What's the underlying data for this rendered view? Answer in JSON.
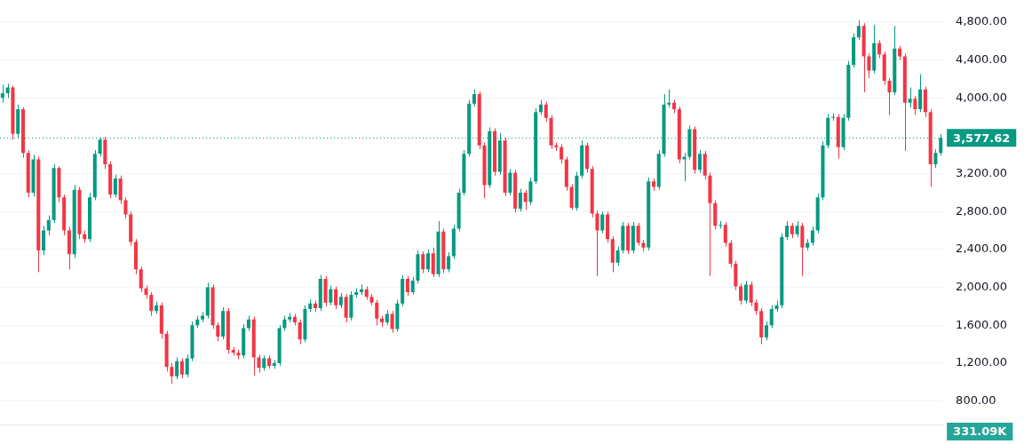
{
  "chart_data": {
    "type": "candlestick",
    "categories": [
      null,
      null,
      null,
      null,
      null,
      null,
      null,
      null,
      null,
      null,
      null,
      null,
      null,
      null,
      null,
      null,
      null,
      null,
      null,
      null,
      null,
      null,
      null,
      null,
      null,
      null,
      null,
      null,
      null,
      null,
      null,
      null,
      null,
      null,
      null,
      null,
      null,
      null,
      null,
      null,
      null,
      null,
      null,
      null,
      null,
      null,
      null,
      null,
      null,
      null,
      null,
      null,
      null,
      null,
      null,
      null,
      null,
      null,
      null,
      null,
      null,
      null,
      null,
      null,
      null,
      null,
      null,
      null,
      null,
      null,
      null,
      null,
      null,
      null,
      null,
      null,
      null,
      null,
      null,
      null,
      null,
      null,
      null,
      null,
      null,
      null,
      null,
      null,
      null,
      null,
      null,
      null,
      null,
      null,
      null,
      null,
      null,
      null,
      null,
      null,
      null,
      null,
      null,
      null,
      null,
      null,
      null,
      null,
      null,
      null,
      null,
      null,
      null,
      null,
      null,
      null,
      null,
      null,
      null,
      null,
      null,
      null,
      null,
      null,
      null,
      null,
      null,
      null,
      null,
      null,
      null,
      null,
      null,
      null,
      null,
      null,
      null,
      null,
      null,
      null,
      null,
      null,
      null,
      null,
      null,
      null,
      null,
      null,
      null,
      null,
      null,
      null,
      null,
      null,
      null,
      null,
      null,
      null,
      null,
      null,
      null,
      null,
      null,
      null,
      null,
      null,
      null,
      null,
      null,
      null,
      null,
      null,
      null,
      null,
      null,
      null,
      null,
      null,
      null,
      null,
      null,
      null,
      null,
      null
    ],
    "ohlc": [
      [
        4000,
        4140,
        3950,
        4050
      ],
      [
        4050,
        4150,
        4000,
        4110
      ],
      [
        4110,
        4130,
        3560,
        3620
      ],
      [
        3620,
        3930,
        3580,
        3880
      ],
      [
        3880,
        3900,
        3370,
        3420
      ],
      [
        3420,
        3450,
        2950,
        3000
      ],
      [
        3000,
        3400,
        2960,
        3350
      ],
      [
        3350,
        3380,
        2160,
        2390
      ],
      [
        2390,
        2650,
        2340,
        2600
      ],
      [
        2600,
        2760,
        2550,
        2710
      ],
      [
        2710,
        3300,
        2680,
        3260
      ],
      [
        3260,
        3280,
        2900,
        2950
      ],
      [
        2950,
        2980,
        2550,
        2600
      ],
      [
        2600,
        2640,
        2190,
        2350
      ],
      [
        2350,
        3080,
        2310,
        3030
      ],
      [
        3030,
        3060,
        2510,
        2560
      ],
      [
        2560,
        2600,
        2470,
        2510
      ],
      [
        2510,
        3000,
        2480,
        2950
      ],
      [
        2950,
        3450,
        2920,
        3410
      ],
      [
        3410,
        3580,
        3380,
        3560
      ],
      [
        3560,
        3590,
        3250,
        3300
      ],
      [
        3300,
        3330,
        2940,
        2980
      ],
      [
        2980,
        3190,
        2950,
        3150
      ],
      [
        3150,
        3180,
        2880,
        2920
      ],
      [
        2920,
        2950,
        2730,
        2770
      ],
      [
        2770,
        2800,
        2440,
        2480
      ],
      [
        2480,
        2510,
        2140,
        2190
      ],
      [
        2190,
        2220,
        1950,
        1990
      ],
      [
        1990,
        2020,
        1880,
        1920
      ],
      [
        1920,
        1950,
        1700,
        1750
      ],
      [
        1750,
        1850,
        1720,
        1810
      ],
      [
        1810,
        1840,
        1460,
        1510
      ],
      [
        1510,
        1540,
        1110,
        1160
      ],
      [
        1160,
        1200,
        980,
        1060
      ],
      [
        1060,
        1260,
        1030,
        1220
      ],
      [
        1220,
        1250,
        1040,
        1080
      ],
      [
        1080,
        1290,
        1050,
        1250
      ],
      [
        1250,
        1640,
        1220,
        1600
      ],
      [
        1600,
        1700,
        1570,
        1660
      ],
      [
        1660,
        1740,
        1630,
        1700
      ],
      [
        1700,
        2050,
        1670,
        2000
      ],
      [
        2000,
        2030,
        1560,
        1600
      ],
      [
        1600,
        1630,
        1430,
        1480
      ],
      [
        1480,
        1790,
        1450,
        1750
      ],
      [
        1750,
        1780,
        1300,
        1340
      ],
      [
        1340,
        1370,
        1280,
        1310
      ],
      [
        1310,
        1340,
        1240,
        1280
      ],
      [
        1280,
        1610,
        1250,
        1570
      ],
      [
        1570,
        1700,
        1540,
        1660
      ],
      [
        1660,
        1690,
        1070,
        1260
      ],
      [
        1260,
        1290,
        1100,
        1150
      ],
      [
        1150,
        1280,
        1120,
        1250
      ],
      [
        1250,
        1280,
        1140,
        1170
      ],
      [
        1170,
        1230,
        1140,
        1200
      ],
      [
        1200,
        1600,
        1170,
        1570
      ],
      [
        1570,
        1700,
        1540,
        1660
      ],
      [
        1660,
        1730,
        1630,
        1690
      ],
      [
        1690,
        1720,
        1600,
        1630
      ],
      [
        1630,
        1660,
        1400,
        1450
      ],
      [
        1450,
        1810,
        1420,
        1770
      ],
      [
        1770,
        1870,
        1740,
        1830
      ],
      [
        1830,
        1860,
        1740,
        1780
      ],
      [
        1780,
        2130,
        1750,
        2090
      ],
      [
        2090,
        2120,
        1800,
        1840
      ],
      [
        1840,
        2020,
        1810,
        1980
      ],
      [
        1980,
        2010,
        1770,
        1810
      ],
      [
        1810,
        1940,
        1780,
        1900
      ],
      [
        1900,
        1930,
        1630,
        1680
      ],
      [
        1680,
        1960,
        1650,
        1920
      ],
      [
        1920,
        1990,
        1890,
        1950
      ],
      [
        1950,
        2030,
        1920,
        1980
      ],
      [
        1980,
        2010,
        1870,
        1900
      ],
      [
        1900,
        1930,
        1810,
        1840
      ],
      [
        1840,
        1870,
        1600,
        1670
      ],
      [
        1670,
        1700,
        1580,
        1630
      ],
      [
        1630,
        1760,
        1600,
        1720
      ],
      [
        1720,
        1750,
        1520,
        1560
      ],
      [
        1560,
        1870,
        1530,
        1830
      ],
      [
        1830,
        2130,
        1800,
        2090
      ],
      [
        2090,
        2120,
        1910,
        1950
      ],
      [
        1950,
        2110,
        1920,
        2070
      ],
      [
        2070,
        2390,
        2040,
        2350
      ],
      [
        2350,
        2380,
        2150,
        2190
      ],
      [
        2190,
        2400,
        2160,
        2360
      ],
      [
        2360,
        2420,
        2110,
        2140
      ],
      [
        2140,
        2700,
        2110,
        2590
      ],
      [
        2590,
        2620,
        2150,
        2190
      ],
      [
        2190,
        2370,
        2160,
        2330
      ],
      [
        2330,
        2660,
        2300,
        2620
      ],
      [
        2620,
        3040,
        2590,
        3000
      ],
      [
        3000,
        3450,
        2970,
        3410
      ],
      [
        3410,
        3980,
        3380,
        3940
      ],
      [
        3940,
        4090,
        3910,
        4040
      ],
      [
        4040,
        4070,
        3460,
        3500
      ],
      [
        3500,
        3530,
        2940,
        3080
      ],
      [
        3080,
        3690,
        3050,
        3650
      ],
      [
        3650,
        3680,
        3180,
        3220
      ],
      [
        3220,
        3630,
        3190,
        3550
      ],
      [
        3550,
        3580,
        2960,
        3000
      ],
      [
        3000,
        3250,
        2970,
        3210
      ],
      [
        3210,
        3240,
        2790,
        2830
      ],
      [
        2830,
        3040,
        2800,
        3000
      ],
      [
        3000,
        3030,
        2820,
        2900
      ],
      [
        2900,
        3160,
        2870,
        3120
      ],
      [
        3120,
        3890,
        3090,
        3850
      ],
      [
        3850,
        3980,
        3820,
        3930
      ],
      [
        3930,
        3960,
        3750,
        3790
      ],
      [
        3790,
        3820,
        3460,
        3500
      ],
      [
        3500,
        3530,
        3440,
        3480
      ],
      [
        3480,
        3510,
        3310,
        3350
      ],
      [
        3350,
        3380,
        3020,
        3060
      ],
      [
        3060,
        3090,
        2820,
        2840
      ],
      [
        2840,
        3220,
        2810,
        3180
      ],
      [
        3180,
        3550,
        3150,
        3500
      ],
      [
        3500,
        3530,
        3210,
        3250
      ],
      [
        3250,
        3280,
        2740,
        2780
      ],
      [
        2780,
        2810,
        2120,
        2600
      ],
      [
        2600,
        2800,
        2570,
        2770
      ],
      [
        2770,
        2800,
        2470,
        2510
      ],
      [
        2510,
        2540,
        2160,
        2260
      ],
      [
        2260,
        2430,
        2230,
        2390
      ],
      [
        2390,
        2690,
        2360,
        2650
      ],
      [
        2650,
        2680,
        2350,
        2390
      ],
      [
        2390,
        2690,
        2360,
        2650
      ],
      [
        2650,
        2680,
        2440,
        2470
      ],
      [
        2470,
        2500,
        2380,
        2420
      ],
      [
        2420,
        3160,
        2390,
        3120
      ],
      [
        3120,
        3150,
        3020,
        3060
      ],
      [
        3060,
        3450,
        3030,
        3410
      ],
      [
        3410,
        4040,
        3380,
        3930
      ],
      [
        3930,
        4090,
        3900,
        3950
      ],
      [
        3950,
        3980,
        3840,
        3880
      ],
      [
        3880,
        3910,
        3310,
        3350
      ],
      [
        3350,
        3420,
        3120,
        3380
      ],
      [
        3380,
        3710,
        3350,
        3670
      ],
      [
        3670,
        3700,
        3200,
        3240
      ],
      [
        3240,
        3450,
        3210,
        3410
      ],
      [
        3410,
        3440,
        3140,
        3180
      ],
      [
        3180,
        3210,
        2120,
        2890
      ],
      [
        2890,
        2920,
        2610,
        2650
      ],
      [
        2650,
        2700,
        2620,
        2660
      ],
      [
        2660,
        2690,
        2430,
        2470
      ],
      [
        2470,
        2500,
        2210,
        2250
      ],
      [
        2250,
        2280,
        1970,
        2010
      ],
      [
        2010,
        2040,
        1820,
        1860
      ],
      [
        1860,
        2070,
        1830,
        2030
      ],
      [
        2030,
        2060,
        1800,
        1840
      ],
      [
        1840,
        1870,
        1710,
        1750
      ],
      [
        1750,
        1780,
        1400,
        1470
      ],
      [
        1470,
        1640,
        1440,
        1600
      ],
      [
        1600,
        1810,
        1570,
        1770
      ],
      [
        1770,
        1860,
        1740,
        1810
      ],
      [
        1810,
        2570,
        1780,
        2530
      ],
      [
        2530,
        2700,
        2500,
        2650
      ],
      [
        2650,
        2680,
        2520,
        2560
      ],
      [
        2560,
        2700,
        2530,
        2650
      ],
      [
        2650,
        2680,
        2120,
        2420
      ],
      [
        2420,
        2510,
        2390,
        2470
      ],
      [
        2470,
        2640,
        2440,
        2600
      ],
      [
        2600,
        2990,
        2570,
        2950
      ],
      [
        2950,
        3540,
        2920,
        3500
      ],
      [
        3500,
        3830,
        3470,
        3790
      ],
      [
        3790,
        3840,
        3760,
        3800
      ],
      [
        3800,
        3830,
        3360,
        3480
      ],
      [
        3480,
        3830,
        3450,
        3790
      ],
      [
        3790,
        4390,
        3760,
        4350
      ],
      [
        4350,
        4680,
        4320,
        4640
      ],
      [
        4640,
        4820,
        4610,
        4760
      ],
      [
        4760,
        4790,
        4060,
        4440
      ],
      [
        4440,
        4470,
        4210,
        4290
      ],
      [
        4290,
        4770,
        4260,
        4580
      ],
      [
        4580,
        4610,
        4420,
        4460
      ],
      [
        4460,
        4490,
        4140,
        4180
      ],
      [
        4180,
        4210,
        3820,
        4060
      ],
      [
        4060,
        4760,
        4030,
        4520
      ],
      [
        4520,
        4550,
        4400,
        4440
      ],
      [
        4440,
        4470,
        3440,
        3950
      ],
      [
        3950,
        4110,
        3900,
        3990
      ],
      [
        3990,
        4020,
        3820,
        3880
      ],
      [
        3880,
        4250,
        3850,
        4090
      ],
      [
        4090,
        4120,
        3800,
        3850
      ],
      [
        3850,
        3880,
        3060,
        3300
      ],
      [
        3300,
        3460,
        3260,
        3420
      ],
      [
        3420,
        3620,
        3390,
        3577.62
      ]
    ],
    "colors": [
      "#089981",
      "#089981",
      "#f23645",
      "#089981",
      "#f23645",
      "#f23645",
      "#089981",
      "#f23645",
      "#089981",
      "#089981",
      "#089981",
      "#f23645",
      "#f23645",
      "#f23645",
      "#089981",
      "#f23645",
      "#f23645",
      "#089981",
      "#089981",
      "#089981",
      "#f23645",
      "#f23645",
      "#089981",
      "#f23645",
      "#f23645",
      "#f23645",
      "#f23645",
      "#f23645",
      "#f23645",
      "#f23645",
      "#089981",
      "#f23645",
      "#f23645",
      "#f23645",
      "#089981",
      "#f23645",
      "#089981",
      "#089981",
      "#089981",
      "#089981",
      "#089981",
      "#f23645",
      "#f23645",
      "#089981",
      "#f23645",
      "#f23645",
      "#f23645",
      "#089981",
      "#089981",
      "#f23645",
      "#f23645",
      "#089981",
      "#f23645",
      "#089981",
      "#089981",
      "#089981",
      "#089981",
      "#f23645",
      "#f23645",
      "#089981",
      "#089981",
      "#f23645",
      "#089981",
      "#f23645",
      "#089981",
      "#f23645",
      "#089981",
      "#f23645",
      "#089981",
      "#089981",
      "#089981",
      "#f23645",
      "#f23645",
      "#f23645",
      "#f23645",
      "#089981",
      "#f23645",
      "#089981",
      "#089981",
      "#f23645",
      "#089981",
      "#089981",
      "#f23645",
      "#089981",
      "#f23645",
      "#089981",
      "#f23645",
      "#089981",
      "#089981",
      "#089981",
      "#089981",
      "#089981",
      "#089981",
      "#f23645",
      "#f23645",
      "#089981",
      "#f23645",
      "#089981",
      "#f23645",
      "#089981",
      "#f23645",
      "#089981",
      "#f23645",
      "#089981",
      "#089981",
      "#089981",
      "#f23645",
      "#f23645",
      "#f23645",
      "#f23645",
      "#f23645",
      "#f23645",
      "#089981",
      "#089981",
      "#f23645",
      "#f23645",
      "#f23645",
      "#089981",
      "#f23645",
      "#f23645",
      "#089981",
      "#089981",
      "#f23645",
      "#089981",
      "#f23645",
      "#f23645",
      "#089981",
      "#f23645",
      "#089981",
      "#089981",
      "#089981",
      "#f23645",
      "#f23645",
      "#089981",
      "#089981",
      "#f23645",
      "#089981",
      "#f23645",
      "#f23645",
      "#f23645",
      "#089981",
      "#f23645",
      "#f23645",
      "#f23645",
      "#f23645",
      "#089981",
      "#f23645",
      "#f23645",
      "#f23645",
      "#089981",
      "#089981",
      "#089981",
      "#089981",
      "#089981",
      "#f23645",
      "#089981",
      "#f23645",
      "#089981",
      "#089981",
      "#089981",
      "#089981",
      "#089981",
      "#089981",
      "#f23645",
      "#089981",
      "#089981",
      "#089981",
      "#089981",
      "#f23645",
      "#f23645",
      "#089981",
      "#f23645",
      "#f23645",
      "#f23645",
      "#089981",
      "#f23645",
      "#f23645",
      "#089981",
      "#f23645",
      "#089981",
      "#f23645",
      "#f23645",
      "#089981",
      "#089981"
    ],
    "ylim": [
      550,
      4830
    ],
    "yticks": [
      {
        "value": 800,
        "label": "800.00"
      },
      {
        "value": 1200,
        "label": "1,200.00"
      },
      {
        "value": 1600,
        "label": "1,600.00"
      },
      {
        "value": 2000,
        "label": "2,000.00"
      },
      {
        "value": 2400,
        "label": "2,400.00"
      },
      {
        "value": 2800,
        "label": "2,800.00"
      },
      {
        "value": 3200,
        "label": "3,200.00"
      },
      {
        "value": 4000,
        "label": "4,000.00"
      },
      {
        "value": 4400,
        "label": "4,400.00"
      },
      {
        "value": 4800,
        "label": "4,800.00"
      }
    ],
    "ref_lines": [
      {
        "axis": "y",
        "value": 3577.62,
        "label": "3,577.62",
        "color": "#089981",
        "line_style": "dotted"
      }
    ],
    "annotations": [
      "331.09K"
    ],
    "grid": "y",
    "legend": false,
    "tick_labels": "y"
  }
}
